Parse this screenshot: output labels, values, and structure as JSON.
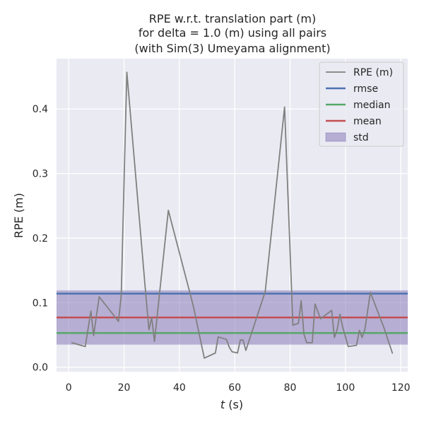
{
  "chart_data": {
    "type": "line",
    "title_lines": [
      "RPE w.r.t. translation part (m)",
      "for delta = 1.0 (m) using all pairs",
      "(with Sim(3) Umeyama alignment)"
    ],
    "xlabel_italic": "t",
    "xlabel_rest": " (s)",
    "ylabel": "RPE (m)",
    "xlim": [
      -4.4,
      122.5
    ],
    "ylim": [
      -0.007,
      0.478
    ],
    "x_ticks": [
      0,
      20,
      40,
      60,
      80,
      100,
      120
    ],
    "y_ticks": [
      0.0,
      0.1,
      0.2,
      0.3,
      0.4
    ],
    "y_tick_labels": [
      "0.0",
      "0.1",
      "0.2",
      "0.3",
      "0.4"
    ],
    "grid": true,
    "legend_position": "top-right",
    "series": [
      {
        "name": "RPE (m)",
        "color": "#808080",
        "x": [
          1,
          6,
          8,
          9,
          11,
          18,
          19,
          20,
          21,
          28,
          29,
          30,
          31,
          36,
          45,
          49,
          53,
          54,
          57,
          58,
          59,
          61,
          62,
          63,
          64,
          71,
          78,
          81,
          83,
          84,
          85,
          86,
          88,
          89,
          91,
          95,
          96,
          97,
          98,
          99,
          101,
          104,
          105,
          106,
          107,
          109,
          114,
          117
        ],
        "y": [
          0.038,
          0.032,
          0.087,
          0.049,
          0.109,
          0.071,
          0.112,
          0.29,
          0.457,
          0.105,
          0.058,
          0.077,
          0.04,
          0.243,
          0.095,
          0.014,
          0.022,
          0.047,
          0.043,
          0.031,
          0.024,
          0.022,
          0.042,
          0.042,
          0.026,
          0.117,
          0.403,
          0.065,
          0.068,
          0.103,
          0.051,
          0.038,
          0.038,
          0.098,
          0.075,
          0.088,
          0.046,
          0.058,
          0.082,
          0.062,
          0.032,
          0.034,
          0.057,
          0.046,
          0.058,
          0.116,
          0.06,
          0.021
        ]
      },
      {
        "name": "rmse",
        "color": "#4c72b0",
        "value": 0.114
      },
      {
        "name": "median",
        "color": "#55a868",
        "value": 0.053
      },
      {
        "name": "mean",
        "color": "#c44e52",
        "value": 0.077
      },
      {
        "name": "std",
        "color": "#8172b3",
        "band": [
          0.035,
          0.119
        ]
      }
    ]
  },
  "style": {
    "plot_bg": "#eaeaf2",
    "grid_color": "#ffffff",
    "text_color": "#262626"
  }
}
